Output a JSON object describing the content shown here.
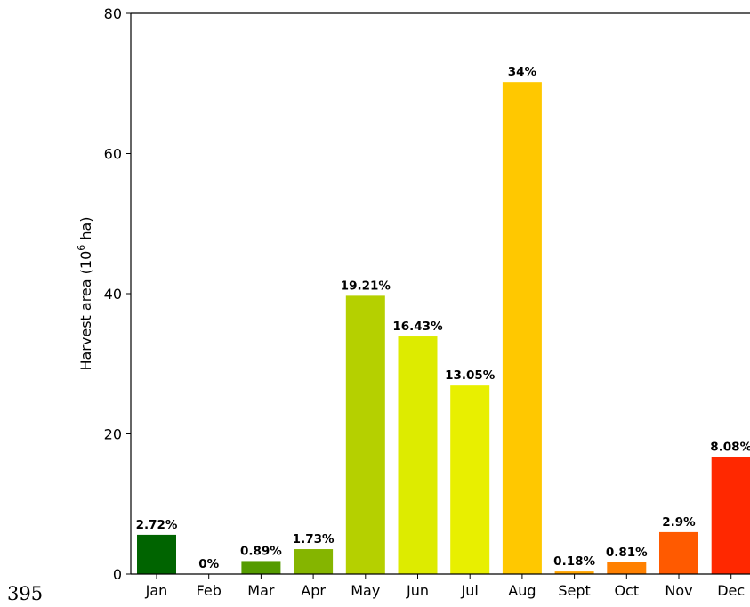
{
  "page_number": "395",
  "chart_data": {
    "type": "bar",
    "title": "",
    "xlabel": "",
    "ylabel_main": "Harvest area (10",
    "ylabel_sup": "6",
    "ylabel_end": " ha)",
    "ylim": [
      0,
      80
    ],
    "yticks": [
      0,
      20,
      40,
      60,
      80
    ],
    "grid": false,
    "categories": [
      "Jan",
      "Feb",
      "Mar",
      "Apr",
      "May",
      "Jun",
      "Jul",
      "Aug",
      "Sept",
      "Oct",
      "Nov",
      "Dec"
    ],
    "values": [
      5.6,
      0.0,
      1.85,
      3.55,
      39.7,
      33.9,
      26.9,
      70.2,
      0.37,
      1.67,
      5.98,
      16.7
    ],
    "labels": [
      "2.72%",
      "0%",
      "0.89%",
      "1.73%",
      "19.21%",
      "16.43%",
      "13.05%",
      "34%",
      "0.18%",
      "0.81%",
      "2.9%",
      "8.08%"
    ],
    "colors": [
      "#006400",
      "#2e7d00",
      "#559b00",
      "#85b500",
      "#b5d000",
      "#ddeb00",
      "#e8ef00",
      "#ffc800",
      "#ffa500",
      "#ff8000",
      "#ff5a00",
      "#ff2800"
    ]
  }
}
